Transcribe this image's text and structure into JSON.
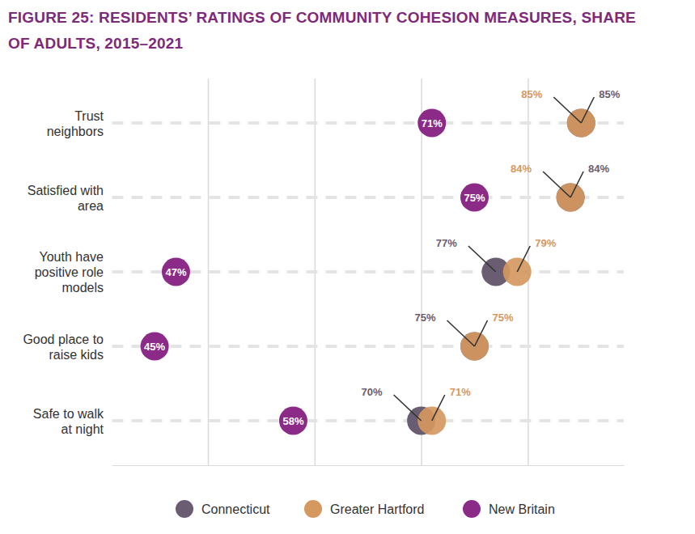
{
  "chart_data": {
    "type": "dot",
    "title": "FIGURE 25: RESIDENTS’ RATINGS OF COMMUNITY COHESION MEASURES, SHARE OF ADULTS, 2015–2021",
    "orientation": "horizontal",
    "categories": [
      "Trust neighbors",
      "Satisfied with area",
      "Youth have positive role models",
      "Good place to raise kids",
      "Safe to walk at night"
    ],
    "series": [
      {
        "name": "Connecticut",
        "color": "#6a5d72",
        "values": [
          85,
          84,
          77,
          75,
          70
        ],
        "value_labels": [
          "85%",
          "84%",
          "77%",
          "75%",
          "70%"
        ]
      },
      {
        "name": "Greater Hartford",
        "color": "#d5985f",
        "values": [
          85,
          84,
          79,
          75,
          71
        ],
        "value_labels": [
          "85%",
          "84%",
          "79%",
          "75%",
          "71%"
        ]
      },
      {
        "name": "New Britain",
        "color": "#8c2a88",
        "values": [
          71,
          75,
          47,
          45,
          58
        ],
        "value_labels": [
          "71%",
          "75%",
          "47%",
          "45%",
          "58%"
        ]
      }
    ],
    "xlim": [
      41,
      89
    ],
    "xticks": [
      50,
      60,
      70,
      80
    ],
    "grid": true,
    "tick_labels": false,
    "data_labels": true,
    "legend": "bottom"
  }
}
